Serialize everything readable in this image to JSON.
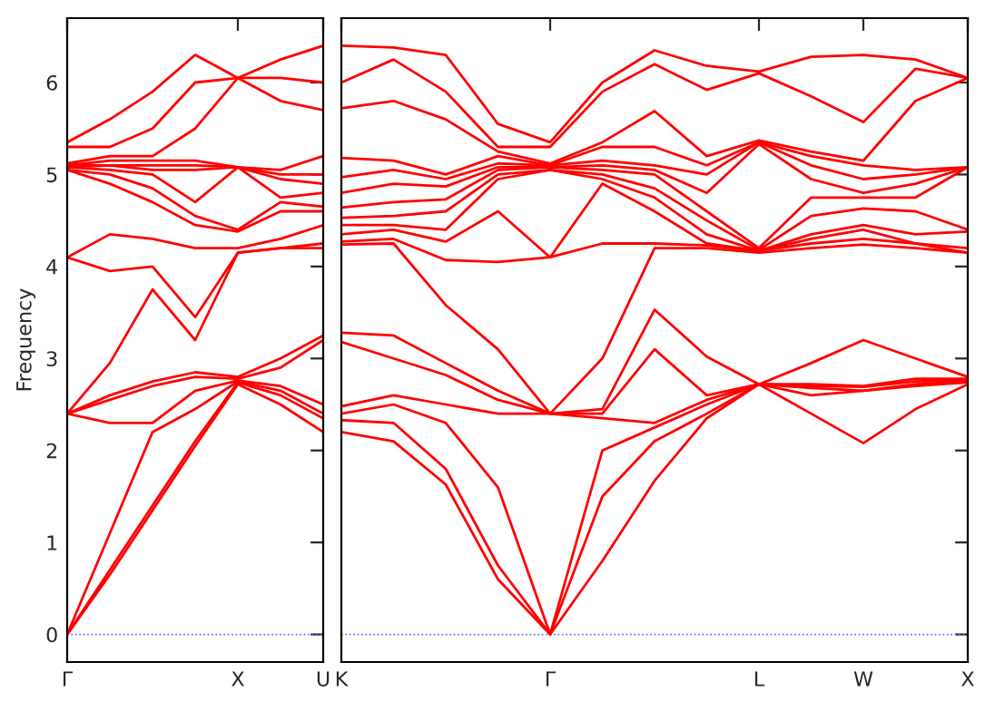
{
  "chart_data": [
    {
      "type": "line",
      "ylabel": "Frequency",
      "categories": [
        "Γ",
        null,
        null,
        null,
        "X",
        null,
        "U"
      ],
      "ylim": [
        -0.3,
        6.7
      ],
      "yticks": [
        0,
        1,
        2,
        3,
        4,
        5,
        6
      ],
      "ref_lines": [
        {
          "axis": "y",
          "value": 0,
          "color": "#6666ff",
          "line_style": "dotted"
        }
      ],
      "series": [
        {
          "color": "#ff0000",
          "values": [
            0,
            0.65,
            1.35,
            2.05,
            2.72,
            2.5,
            2.2
          ]
        },
        {
          "color": "#ff0000",
          "values": [
            0,
            0.7,
            1.4,
            2.1,
            2.74,
            2.6,
            2.35
          ]
        },
        {
          "color": "#ff0000",
          "values": [
            0,
            1.1,
            2.2,
            2.45,
            2.75,
            2.65,
            2.4
          ]
        },
        {
          "color": "#ff0000",
          "values": [
            2.4,
            2.3,
            2.3,
            2.65,
            2.76,
            2.7,
            2.5
          ]
        },
        {
          "color": "#ff0000",
          "values": [
            2.4,
            2.55,
            2.7,
            2.8,
            2.78,
            2.9,
            3.2
          ]
        },
        {
          "color": "#ff0000",
          "values": [
            2.4,
            2.6,
            2.75,
            2.85,
            2.8,
            3.0,
            3.25
          ]
        },
        {
          "color": "#ff0000",
          "values": [
            2.4,
            2.95,
            3.75,
            3.2,
            4.15,
            4.2,
            4.2
          ]
        },
        {
          "color": "#ff0000",
          "values": [
            4.1,
            3.95,
            4.0,
            3.45,
            4.15,
            4.2,
            4.25
          ]
        },
        {
          "color": "#ff0000",
          "values": [
            4.1,
            4.35,
            4.3,
            4.2,
            4.2,
            4.3,
            4.45
          ]
        },
        {
          "color": "#ff0000",
          "values": [
            5.05,
            4.9,
            4.7,
            4.45,
            4.38,
            4.6,
            4.6
          ]
        },
        {
          "color": "#ff0000",
          "values": [
            5.05,
            5.0,
            4.85,
            4.55,
            4.4,
            4.7,
            4.65
          ]
        },
        {
          "color": "#ff0000",
          "values": [
            5.08,
            5.05,
            5.0,
            4.7,
            5.08,
            4.75,
            4.8
          ]
        },
        {
          "color": "#ff0000",
          "values": [
            5.08,
            5.1,
            5.05,
            5.05,
            5.08,
            4.95,
            4.9
          ]
        },
        {
          "color": "#ff0000",
          "values": [
            5.1,
            5.1,
            5.1,
            5.1,
            5.08,
            5.0,
            5.0
          ]
        },
        {
          "color": "#ff0000",
          "values": [
            5.1,
            5.15,
            5.15,
            5.15,
            5.08,
            5.05,
            5.2
          ]
        },
        {
          "color": "#ff0000",
          "values": [
            5.12,
            5.2,
            5.2,
            5.5,
            6.05,
            5.8,
            5.7
          ]
        },
        {
          "color": "#ff0000",
          "values": [
            5.3,
            5.3,
            5.5,
            6.0,
            6.05,
            6.05,
            6.0
          ]
        },
        {
          "color": "#ff0000",
          "values": [
            5.35,
            5.6,
            5.9,
            6.3,
            6.05,
            6.25,
            6.4
          ]
        }
      ]
    },
    {
      "type": "line",
      "categories": [
        "K",
        null,
        null,
        null,
        "Γ",
        null,
        null,
        null,
        "L",
        null,
        "W",
        null,
        "X"
      ],
      "ylim": [
        -0.3,
        6.7
      ],
      "yticks": [
        0,
        1,
        2,
        3,
        4,
        5,
        6
      ],
      "tick_labels": "x",
      "ref_lines": [
        {
          "axis": "y",
          "value": 0,
          "color": "#6666ff",
          "line_style": "dotted"
        }
      ],
      "series": [
        {
          "color": "#ff0000",
          "values": [
            2.2,
            2.1,
            1.63,
            0.6,
            0,
            0.8,
            1.67,
            2.35,
            2.72,
            2.4,
            2.08,
            2.45,
            2.72
          ]
        },
        {
          "color": "#ff0000",
          "values": [
            2.33,
            2.3,
            1.8,
            0.75,
            0,
            1.5,
            2.1,
            2.4,
            2.72,
            2.6,
            2.65,
            2.7,
            2.74
          ]
        },
        {
          "color": "#ff0000",
          "values": [
            2.4,
            2.5,
            2.3,
            1.6,
            0,
            2.0,
            2.25,
            2.5,
            2.72,
            2.68,
            2.65,
            2.72,
            2.75
          ]
        },
        {
          "color": "#ff0000",
          "values": [
            2.48,
            2.6,
            2.5,
            2.4,
            2.4,
            2.35,
            2.3,
            2.55,
            2.72,
            2.7,
            2.69,
            2.75,
            2.76
          ]
        },
        {
          "color": "#ff0000",
          "values": [
            3.18,
            3.0,
            2.82,
            2.55,
            2.4,
            2.4,
            3.1,
            2.6,
            2.72,
            2.72,
            2.7,
            2.78,
            2.78
          ]
        },
        {
          "color": "#ff0000",
          "values": [
            3.28,
            3.25,
            2.95,
            2.65,
            2.4,
            2.45,
            3.53,
            3.02,
            2.72,
            2.95,
            3.2,
            3.0,
            2.8
          ]
        },
        {
          "color": "#ff0000",
          "values": [
            4.24,
            4.25,
            3.58,
            3.1,
            2.4,
            3.0,
            4.2,
            4.2,
            4.15,
            4.2,
            4.24,
            4.2,
            4.15
          ]
        },
        {
          "color": "#ff0000",
          "values": [
            4.27,
            4.3,
            4.07,
            4.05,
            4.1,
            4.25,
            4.25,
            4.23,
            4.17,
            4.25,
            4.3,
            4.25,
            4.15
          ]
        },
        {
          "color": "#ff0000",
          "values": [
            4.35,
            4.4,
            4.27,
            4.6,
            4.1,
            4.9,
            4.6,
            4.25,
            4.17,
            4.3,
            4.4,
            4.25,
            4.2
          ]
        },
        {
          "color": "#ff0000",
          "values": [
            4.45,
            4.45,
            4.4,
            4.95,
            5.05,
            4.95,
            4.75,
            4.35,
            4.17,
            4.35,
            4.45,
            4.35,
            4.38
          ]
        },
        {
          "color": "#ff0000",
          "values": [
            4.53,
            4.55,
            4.6,
            5.0,
            5.05,
            5.0,
            4.85,
            4.5,
            4.18,
            4.55,
            4.63,
            4.6,
            4.4
          ]
        },
        {
          "color": "#ff0000",
          "values": [
            4.64,
            4.7,
            4.73,
            5.05,
            5.08,
            5.05,
            5.0,
            4.6,
            4.2,
            4.75,
            4.75,
            4.75,
            5.08
          ]
        },
        {
          "color": "#ff0000",
          "values": [
            4.8,
            4.9,
            4.87,
            5.08,
            5.08,
            5.1,
            5.05,
            4.8,
            5.33,
            4.95,
            4.8,
            4.9,
            5.08
          ]
        },
        {
          "color": "#ff0000",
          "values": [
            4.97,
            5.05,
            4.95,
            5.12,
            5.1,
            5.15,
            5.1,
            5.0,
            5.35,
            5.1,
            4.95,
            5.0,
            5.08
          ]
        },
        {
          "color": "#ff0000",
          "values": [
            5.18,
            5.15,
            5.0,
            5.2,
            5.1,
            5.3,
            5.3,
            5.1,
            5.35,
            5.2,
            5.1,
            5.05,
            5.08
          ]
        },
        {
          "color": "#ff0000",
          "values": [
            5.72,
            5.8,
            5.6,
            5.25,
            5.12,
            5.35,
            5.69,
            5.2,
            5.37,
            5.25,
            5.15,
            5.8,
            6.05
          ]
        },
        {
          "color": "#ff0000",
          "values": [
            6.0,
            6.25,
            5.9,
            5.3,
            5.3,
            5.9,
            6.2,
            5.92,
            6.1,
            5.85,
            5.57,
            6.15,
            6.05
          ]
        },
        {
          "color": "#ff0000",
          "values": [
            6.4,
            6.38,
            6.3,
            5.55,
            5.35,
            6.0,
            6.35,
            6.18,
            6.12,
            6.28,
            6.3,
            6.25,
            6.05
          ]
        }
      ]
    }
  ]
}
